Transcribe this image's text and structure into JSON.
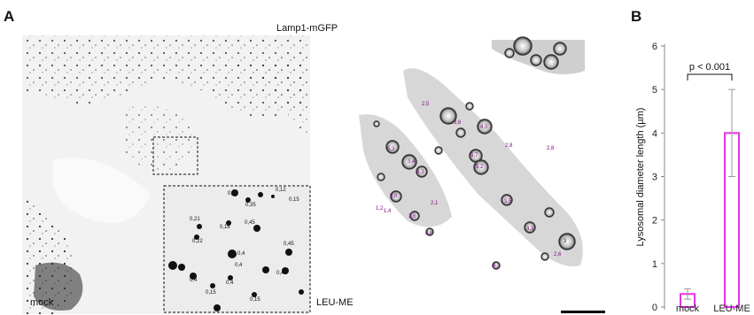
{
  "panel_a": {
    "letter": "A",
    "channel_label": "Lamp1-mGFP",
    "left_label": "mock",
    "right_label": "LEU-ME",
    "inset_measurements": [
      "0,12",
      "0,15",
      "0,35",
      "0,41",
      "0,21",
      "0,16",
      "0,45",
      "0,22",
      "0,45",
      "0,4",
      "0,41",
      "0,4",
      "0,4",
      "0,15",
      "0,15",
      "0,4"
    ],
    "right_measurements": [
      "2,5",
      "3,6",
      "4,0",
      "2,8",
      "2,8",
      "5,3",
      "3,4",
      "5,7",
      "5,2",
      "4,3",
      "3,8",
      "2,1",
      "1,2",
      "1,4",
      "3,6",
      "3,5",
      "3,3",
      "3,8",
      "2,6",
      "4,3",
      "3"
    ]
  },
  "panel_b": {
    "letter": "B",
    "significance_label": "p < 0.001",
    "bar_color": "#e535e5",
    "errorbar_color": "#999999"
  },
  "chart_data": {
    "type": "bar",
    "categories": [
      "mock",
      "LEU-ME"
    ],
    "values": [
      0.3,
      4.0
    ],
    "error": [
      0.12,
      1.0
    ],
    "ylabel": "Lysosomal diameter length (µm)",
    "xlabel": "",
    "title": "",
    "ylim": [
      0,
      6
    ],
    "yticks": [
      0,
      1,
      2,
      3,
      4,
      5,
      6
    ],
    "grid": false,
    "legend": "none"
  }
}
